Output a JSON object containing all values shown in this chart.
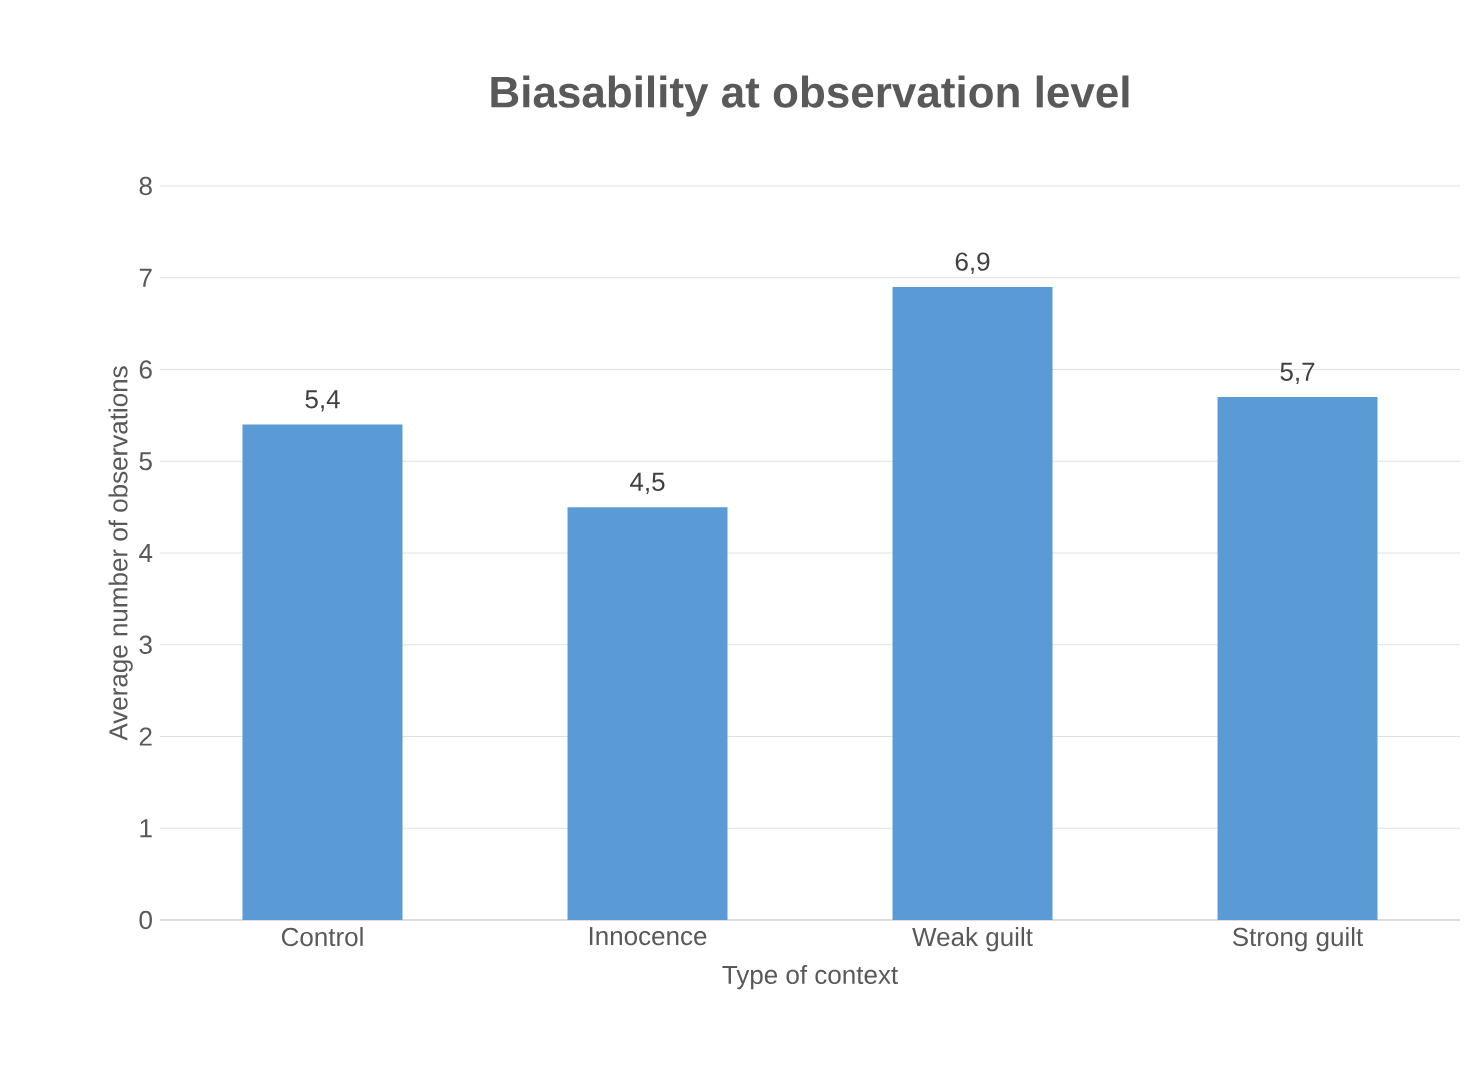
{
  "chart_data": {
    "type": "bar",
    "title": "Biasability at observation level",
    "xlabel": "Type of context",
    "ylabel": "Average number of observations",
    "categories": [
      "Control",
      "Innocence",
      "Weak guilt",
      "Strong guilt"
    ],
    "values": [
      5.4,
      4.5,
      6.9,
      5.7
    ],
    "value_labels": [
      "5,4",
      "4,5",
      "6,9",
      "5,7"
    ],
    "color": "#5b9bd5",
    "ylim": [
      0,
      8
    ],
    "yticks": [
      0,
      1,
      2,
      3,
      4,
      5,
      6,
      7,
      8
    ],
    "grid": "y"
  }
}
